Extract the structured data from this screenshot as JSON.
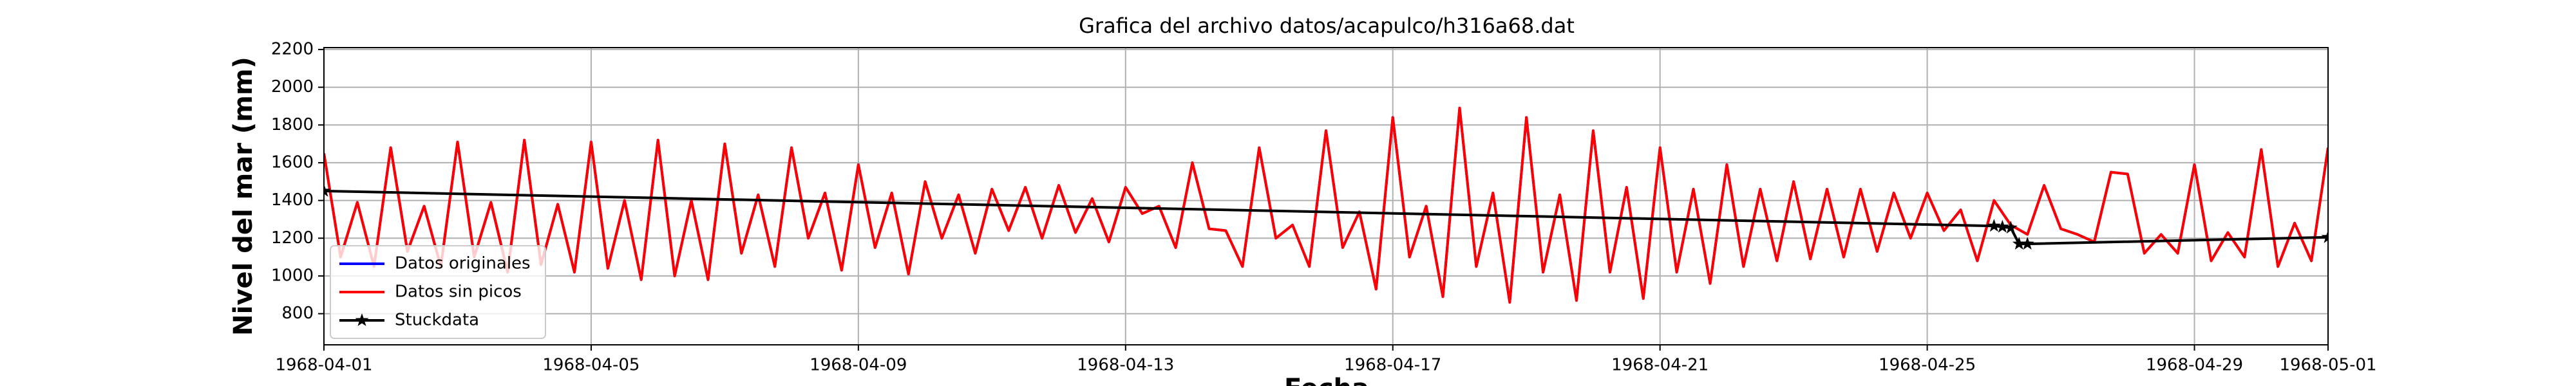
{
  "chart_data": {
    "type": "line",
    "title": "Grafica del archivo datos/acapulco/h316a68.dat",
    "ylabel": "Nivel del mar (mm)",
    "xlabel": "Fecha",
    "xlim": [
      "1968-04-01",
      "1968-05-01"
    ],
    "xticks": [
      "1968-04-01",
      "1968-04-05",
      "1968-04-09",
      "1968-04-13",
      "1968-04-17",
      "1968-04-21",
      "1968-04-25",
      "1968-04-29",
      "1968-05-01"
    ],
    "ylim": [
      635,
      2210
    ],
    "yticks": [
      800,
      1000,
      1200,
      1400,
      1600,
      1800,
      2000,
      2200
    ],
    "grid": true,
    "legend": "lower left",
    "series": [
      {
        "name": "Datos originales",
        "color": "#0000ff",
        "start": "1968-04-01",
        "step_hours": 6,
        "values": [
          1650,
          1100,
          1390,
          1050,
          1680,
          1130,
          1370,
          1050,
          1710,
          1100,
          1390,
          1020,
          1720,
          1060,
          1380,
          1020,
          1710,
          1040,
          1400,
          980,
          1720,
          1000,
          1400,
          980,
          1700,
          1120,
          1430,
          1050,
          1680,
          1200,
          1440,
          1030,
          1590,
          1150,
          1440,
          1010,
          1500,
          1200,
          1430,
          1120,
          1460,
          1240,
          1470,
          1200,
          1480,
          1230,
          1410,
          1180,
          1470,
          1330,
          1370,
          1150,
          1600,
          1250,
          1240,
          1050,
          1680,
          1200,
          1270,
          1050,
          1770,
          1150,
          1340,
          930,
          1840,
          1100,
          1370,
          890,
          1890,
          1050,
          1440,
          860,
          1840,
          1020,
          1430,
          870,
          1770,
          1020,
          1470,
          880,
          1680,
          1020,
          1460,
          960,
          1590,
          1050,
          1460,
          1080,
          1500,
          1090,
          1460,
          1100,
          1460,
          1130,
          1440,
          1200,
          1440,
          1240,
          1350,
          1080,
          1400,
          1270,
          1220,
          1480,
          1250,
          1220,
          1180,
          1550,
          1540,
          1120,
          1220,
          1120,
          1590,
          1080,
          1230,
          1100,
          1670,
          1050,
          1280,
          1080,
          1680
        ]
      },
      {
        "name": "Datos sin picos",
        "color": "#ff0000",
        "start": "1968-04-01",
        "step_hours": 6,
        "values": [
          1650,
          1100,
          1390,
          1050,
          1680,
          1130,
          1370,
          1050,
          1710,
          1100,
          1390,
          1020,
          1720,
          1060,
          1380,
          1020,
          1710,
          1040,
          1400,
          980,
          1720,
          1000,
          1400,
          980,
          1700,
          1120,
          1430,
          1050,
          1680,
          1200,
          1440,
          1030,
          1590,
          1150,
          1440,
          1010,
          1500,
          1200,
          1430,
          1120,
          1460,
          1240,
          1470,
          1200,
          1480,
          1230,
          1410,
          1180,
          1470,
          1330,
          1370,
          1150,
          1600,
          1250,
          1240,
          1050,
          1680,
          1200,
          1270,
          1050,
          1770,
          1150,
          1340,
          930,
          1840,
          1100,
          1370,
          890,
          1890,
          1050,
          1440,
          860,
          1840,
          1020,
          1430,
          870,
          1770,
          1020,
          1470,
          880,
          1680,
          1020,
          1460,
          960,
          1590,
          1050,
          1460,
          1080,
          1500,
          1090,
          1460,
          1100,
          1460,
          1130,
          1440,
          1200,
          1440,
          1240,
          1350,
          1080,
          1400,
          1270,
          1220,
          1480,
          1250,
          1220,
          1180,
          1550,
          1540,
          1120,
          1220,
          1120,
          1590,
          1080,
          1230,
          1100,
          1670,
          1050,
          1280,
          1080,
          1680
        ]
      },
      {
        "name": "Stuckdata",
        "color": "#000000",
        "marker": "star",
        "x": [
          "1968-04-01 00:00",
          "1968-04-26 00:00",
          "1968-04-26 03:00",
          "1968-04-26 06:00",
          "1968-04-26 09:00",
          "1968-04-26 12:00",
          "1968-05-01 00:00"
        ],
        "values": [
          1450,
          1265,
          1260,
          1255,
          1170,
          1170,
          1205
        ]
      }
    ]
  }
}
